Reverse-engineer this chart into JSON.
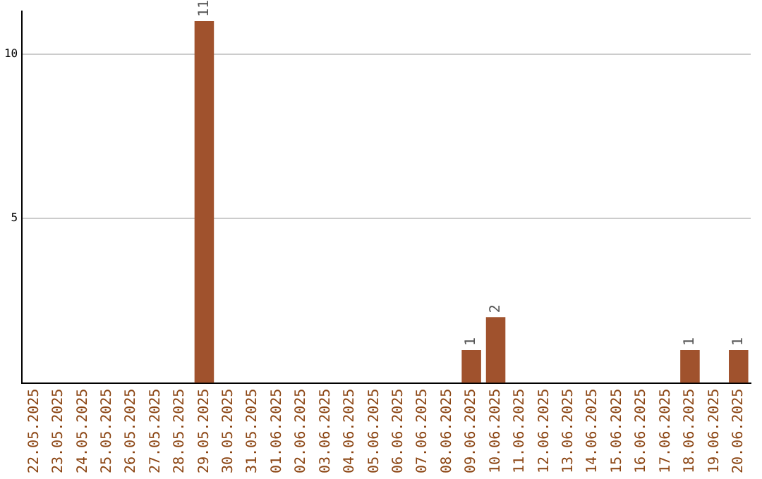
{
  "chart_data": {
    "type": "bar",
    "categories": [
      "22.05.2025",
      "23.05.2025",
      "24.05.2025",
      "25.05.2025",
      "26.05.2025",
      "27.05.2025",
      "28.05.2025",
      "29.05.2025",
      "30.05.2025",
      "31.05.2025",
      "01.06.2025",
      "02.06.2025",
      "03.06.2025",
      "04.06.2025",
      "05.06.2025",
      "06.06.2025",
      "07.06.2025",
      "08.06.2025",
      "09.06.2025",
      "10.06.2025",
      "11.06.2025",
      "12.06.2025",
      "13.06.2025",
      "14.06.2025",
      "15.06.2025",
      "16.06.2025",
      "17.06.2025",
      "18.06.2025",
      "19.06.2025",
      "20.06.2025"
    ],
    "values": [
      0,
      0,
      0,
      0,
      0,
      0,
      0,
      11,
      0,
      0,
      0,
      0,
      0,
      0,
      0,
      0,
      0,
      0,
      1,
      2,
      0,
      0,
      0,
      0,
      0,
      0,
      0,
      1,
      0,
      1
    ],
    "value_labels": [
      null,
      null,
      null,
      null,
      null,
      null,
      null,
      "11",
      null,
      null,
      null,
      null,
      null,
      null,
      null,
      null,
      null,
      null,
      "1",
      "2",
      null,
      null,
      null,
      null,
      null,
      null,
      null,
      "1",
      null,
      "1"
    ],
    "color": "#a0522d",
    "ylim": [
      0,
      11.3
    ],
    "yticks": [
      5,
      10
    ],
    "grid": "y"
  }
}
